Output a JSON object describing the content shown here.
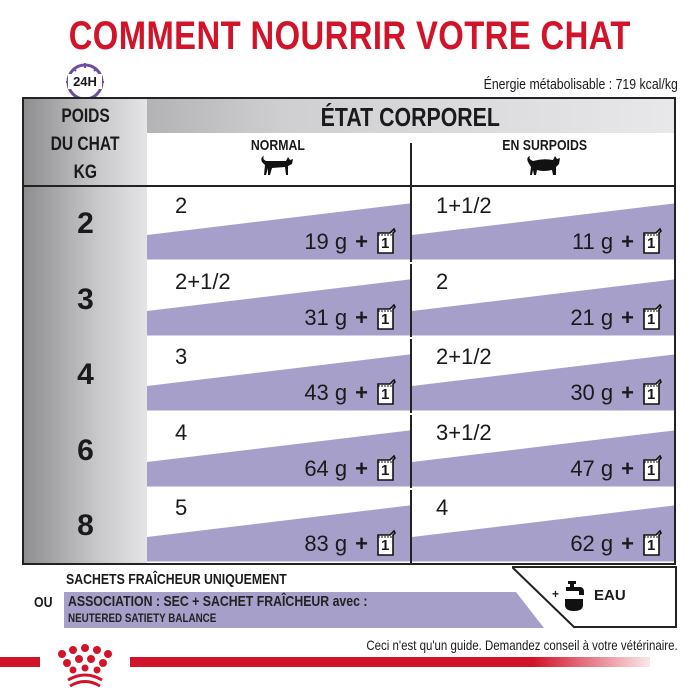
{
  "title": "COMMENT NOURRIR VOTRE CHAT",
  "clock_label": "24H",
  "energy": "Énergie métabolisable : 719 kcal/kg",
  "table": {
    "weight_header": [
      "POIDS",
      "DU CHAT",
      "KG"
    ],
    "condition_header": "ÉTAT CORPOREL",
    "columns": [
      "NORMAL",
      "EN SURPOIDS"
    ],
    "rows": [
      {
        "kg": "2",
        "normal": {
          "pouches": "2",
          "dry": "19 g"
        },
        "overweight": {
          "pouches": "1+1/2",
          "dry": "11 g"
        }
      },
      {
        "kg": "3",
        "normal": {
          "pouches": "2+1/2",
          "dry": "31 g"
        },
        "overweight": {
          "pouches": "2",
          "dry": "21 g"
        }
      },
      {
        "kg": "4",
        "normal": {
          "pouches": "3",
          "dry": "43 g"
        },
        "overweight": {
          "pouches": "2+1/2",
          "dry": "30 g"
        }
      },
      {
        "kg": "6",
        "normal": {
          "pouches": "4",
          "dry": "64 g"
        },
        "overweight": {
          "pouches": "3+1/2",
          "dry": "47 g"
        }
      },
      {
        "kg": "8",
        "normal": {
          "pouches": "5",
          "dry": "83 g"
        },
        "overweight": {
          "pouches": "4",
          "dry": "62 g"
        }
      }
    ],
    "plus": "+",
    "bag_number": "1"
  },
  "legend": {
    "pouch_only": "SACHETS FRAÎCHEUR UNIQUEMENT",
    "or": "OU",
    "mixed": "ASSOCIATION : SEC + SACHET FRAÎCHEUR avec :",
    "product": "NEUTERED SATIETY BALANCE",
    "water_plus": "+",
    "water": "EAU"
  },
  "disclaimer": "Ceci n'est qu'un guide. Demandez conseil à votre vétérinaire.",
  "colors": {
    "brand_red": "#d2142a",
    "purple": "#a69fca",
    "clock_purple": "#6b4fa0"
  }
}
